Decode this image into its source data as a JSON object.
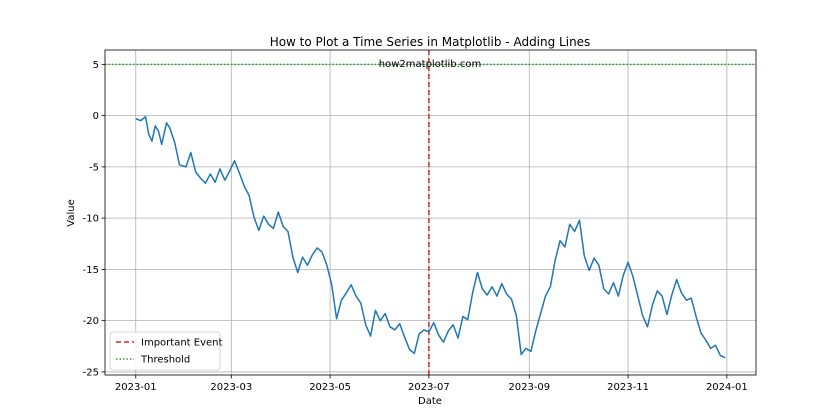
{
  "chart_data": {
    "type": "line",
    "title": "How to Plot a Time Series in Matplotlib - Adding Lines",
    "xlabel": "Date",
    "ylabel": "Value",
    "annotation": "how2matplotlib.com",
    "x_range": [
      "2022-12-13",
      "2024-01-19"
    ],
    "ylim": [
      -25.3,
      6.4
    ],
    "grid": true,
    "legend_placement": "lower-left",
    "x_ticks": [
      {
        "date": "2023-01-01",
        "label": "2023-01"
      },
      {
        "date": "2023-03-01",
        "label": "2023-03"
      },
      {
        "date": "2023-05-01",
        "label": "2023-05"
      },
      {
        "date": "2023-07-01",
        "label": "2023-07"
      },
      {
        "date": "2023-09-01",
        "label": "2023-09"
      },
      {
        "date": "2023-11-01",
        "label": "2023-11"
      },
      {
        "date": "2024-01-01",
        "label": "2024-01"
      }
    ],
    "y_ticks": [
      {
        "value": 5,
        "label": "5"
      },
      {
        "value": 0,
        "label": "0"
      },
      {
        "value": -5,
        "label": "-5"
      },
      {
        "value": -10,
        "label": "-10"
      },
      {
        "value": -15,
        "label": "-15"
      },
      {
        "value": -20,
        "label": "-20"
      },
      {
        "value": -25,
        "label": "-25"
      }
    ],
    "series": [
      {
        "color": "#1f77b4",
        "points": [
          [
            "2023-01-01",
            -0.3
          ],
          [
            "2023-01-04",
            -0.5
          ],
          [
            "2023-01-07",
            -0.1
          ],
          [
            "2023-01-09",
            -1.8
          ],
          [
            "2023-01-11",
            -2.5
          ],
          [
            "2023-01-13",
            -1.0
          ],
          [
            "2023-01-15",
            -1.5
          ],
          [
            "2023-01-17",
            -2.8
          ],
          [
            "2023-01-20",
            -0.7
          ],
          [
            "2023-01-22",
            -1.2
          ],
          [
            "2023-01-25",
            -2.6
          ],
          [
            "2023-01-28",
            -4.8
          ],
          [
            "2023-02-01",
            -5.0
          ],
          [
            "2023-02-04",
            -3.6
          ],
          [
            "2023-02-07",
            -5.5
          ],
          [
            "2023-02-10",
            -6.1
          ],
          [
            "2023-02-13",
            -6.6
          ],
          [
            "2023-02-16",
            -5.7
          ],
          [
            "2023-02-19",
            -6.5
          ],
          [
            "2023-02-22",
            -5.2
          ],
          [
            "2023-02-25",
            -6.3
          ],
          [
            "2023-02-28",
            -5.4
          ],
          [
            "2023-03-03",
            -4.4
          ],
          [
            "2023-03-06",
            -5.6
          ],
          [
            "2023-03-09",
            -6.9
          ],
          [
            "2023-03-12",
            -7.8
          ],
          [
            "2023-03-15",
            -9.9
          ],
          [
            "2023-03-18",
            -11.2
          ],
          [
            "2023-03-21",
            -9.8
          ],
          [
            "2023-03-24",
            -10.6
          ],
          [
            "2023-03-27",
            -11.0
          ],
          [
            "2023-03-30",
            -9.4
          ],
          [
            "2023-04-02",
            -10.8
          ],
          [
            "2023-04-05",
            -11.3
          ],
          [
            "2023-04-08",
            -13.8
          ],
          [
            "2023-04-11",
            -15.3
          ],
          [
            "2023-04-14",
            -13.8
          ],
          [
            "2023-04-17",
            -14.6
          ],
          [
            "2023-04-20",
            -13.6
          ],
          [
            "2023-04-23",
            -12.9
          ],
          [
            "2023-04-26",
            -13.3
          ],
          [
            "2023-04-29",
            -14.6
          ],
          [
            "2023-05-02",
            -16.5
          ],
          [
            "2023-05-05",
            -19.8
          ],
          [
            "2023-05-08",
            -18.0
          ],
          [
            "2023-05-11",
            -17.3
          ],
          [
            "2023-05-14",
            -16.5
          ],
          [
            "2023-05-17",
            -17.6
          ],
          [
            "2023-05-20",
            -18.3
          ],
          [
            "2023-05-23",
            -20.4
          ],
          [
            "2023-05-26",
            -21.5
          ],
          [
            "2023-05-29",
            -19.0
          ],
          [
            "2023-06-01",
            -20.0
          ],
          [
            "2023-06-04",
            -19.3
          ],
          [
            "2023-06-07",
            -20.6
          ],
          [
            "2023-06-10",
            -20.9
          ],
          [
            "2023-06-13",
            -20.3
          ],
          [
            "2023-06-16",
            -21.6
          ],
          [
            "2023-06-19",
            -22.8
          ],
          [
            "2023-06-22",
            -23.2
          ],
          [
            "2023-06-25",
            -21.3
          ],
          [
            "2023-06-28",
            -20.9
          ],
          [
            "2023-07-01",
            -21.1
          ],
          [
            "2023-07-04",
            -20.2
          ],
          [
            "2023-07-07",
            -21.4
          ],
          [
            "2023-07-10",
            -22.1
          ],
          [
            "2023-07-13",
            -21.0
          ],
          [
            "2023-07-16",
            -20.4
          ],
          [
            "2023-07-19",
            -21.7
          ],
          [
            "2023-07-22",
            -19.6
          ],
          [
            "2023-07-25",
            -19.9
          ],
          [
            "2023-07-28",
            -17.3
          ],
          [
            "2023-07-31",
            -15.3
          ],
          [
            "2023-08-03",
            -16.9
          ],
          [
            "2023-08-06",
            -17.5
          ],
          [
            "2023-08-09",
            -16.7
          ],
          [
            "2023-08-12",
            -17.6
          ],
          [
            "2023-08-15",
            -16.4
          ],
          [
            "2023-08-18",
            -17.4
          ],
          [
            "2023-08-21",
            -17.9
          ],
          [
            "2023-08-24",
            -19.5
          ],
          [
            "2023-08-27",
            -23.3
          ],
          [
            "2023-08-30",
            -22.7
          ],
          [
            "2023-09-02",
            -23.0
          ],
          [
            "2023-09-05",
            -21.0
          ],
          [
            "2023-09-08",
            -19.3
          ],
          [
            "2023-09-11",
            -17.6
          ],
          [
            "2023-09-14",
            -16.7
          ],
          [
            "2023-09-17",
            -14.1
          ],
          [
            "2023-09-20",
            -12.2
          ],
          [
            "2023-09-23",
            -12.8
          ],
          [
            "2023-09-26",
            -10.6
          ],
          [
            "2023-09-29",
            -11.3
          ],
          [
            "2023-10-02",
            -10.2
          ],
          [
            "2023-10-05",
            -13.7
          ],
          [
            "2023-10-08",
            -15.1
          ],
          [
            "2023-10-11",
            -13.9
          ],
          [
            "2023-10-14",
            -14.6
          ],
          [
            "2023-10-17",
            -16.9
          ],
          [
            "2023-10-20",
            -17.4
          ],
          [
            "2023-10-23",
            -16.3
          ],
          [
            "2023-10-26",
            -17.6
          ],
          [
            "2023-10-29",
            -15.6
          ],
          [
            "2023-11-01",
            -14.3
          ],
          [
            "2023-11-04",
            -15.7
          ],
          [
            "2023-11-07",
            -17.6
          ],
          [
            "2023-11-10",
            -19.5
          ],
          [
            "2023-11-13",
            -20.6
          ],
          [
            "2023-11-16",
            -18.5
          ],
          [
            "2023-11-19",
            -17.1
          ],
          [
            "2023-11-22",
            -17.6
          ],
          [
            "2023-11-25",
            -19.4
          ],
          [
            "2023-11-28",
            -17.5
          ],
          [
            "2023-12-01",
            -16.0
          ],
          [
            "2023-12-04",
            -17.3
          ],
          [
            "2023-12-07",
            -18.0
          ],
          [
            "2023-12-10",
            -17.8
          ],
          [
            "2023-12-13",
            -19.6
          ],
          [
            "2023-12-16",
            -21.2
          ],
          [
            "2023-12-19",
            -21.9
          ],
          [
            "2023-12-22",
            -22.7
          ],
          [
            "2023-12-25",
            -22.4
          ],
          [
            "2023-12-28",
            -23.4
          ],
          [
            "2023-12-31",
            -23.6
          ]
        ]
      }
    ],
    "event_line": {
      "date": "2023-07-01",
      "label": "Important Event",
      "color": "#d62728",
      "style": "dashed"
    },
    "threshold_line": {
      "value": 5,
      "label": "Threshold",
      "color": "#2ca02c",
      "style": "dotted"
    }
  }
}
